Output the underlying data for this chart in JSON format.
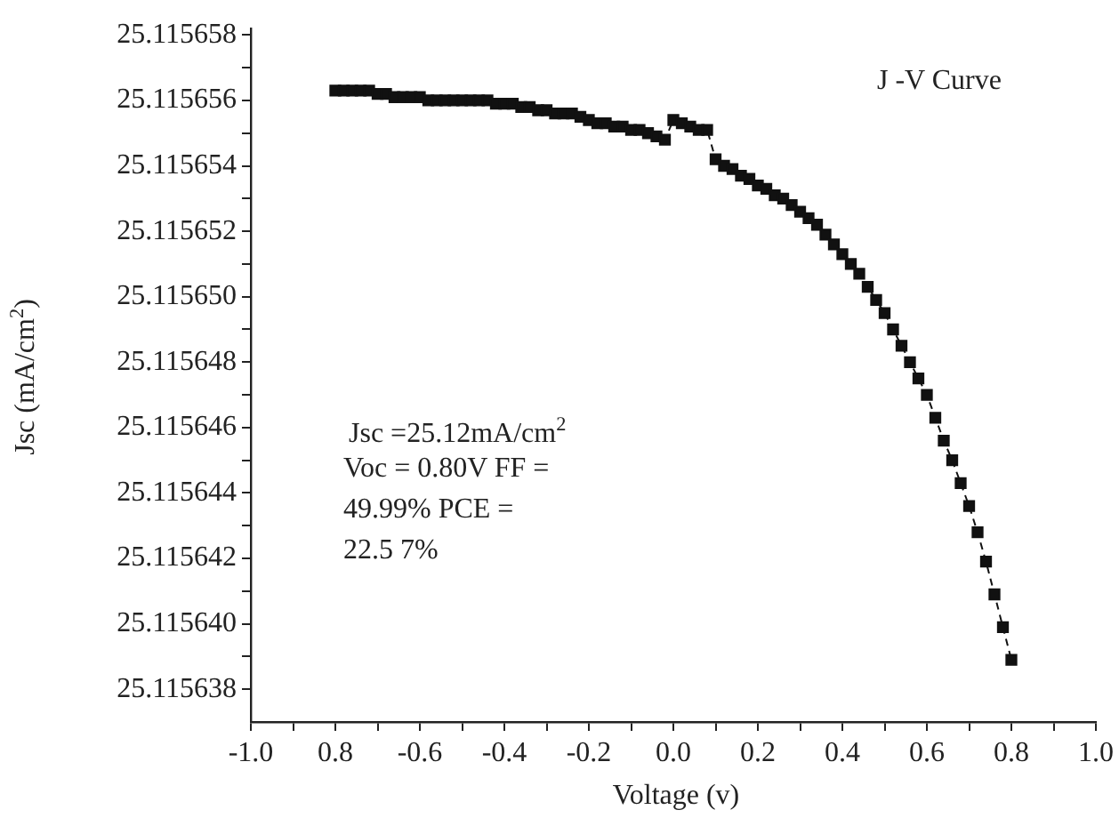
{
  "chart_data": {
    "type": "line",
    "xlabel": "Voltage (v)",
    "ylabel": "Jsc  (mA/cm$^{2}$)",
    "annotations": [
      "J -V Curve",
      "Jsc =25.12mA/cm$^{2}$",
      "Voc = 0.80V FF =",
      "49.99%  PCE  =",
      "22.5 7%"
    ],
    "x": [
      -0.8,
      -0.78,
      -0.76,
      -0.74,
      -0.72,
      -0.7,
      -0.68,
      -0.66,
      -0.64,
      -0.62,
      -0.6,
      -0.58,
      -0.56,
      -0.54,
      -0.52,
      -0.5,
      -0.48,
      -0.46,
      -0.44,
      -0.42,
      -0.4,
      -0.38,
      -0.36,
      -0.34,
      -0.32,
      -0.3,
      -0.28,
      -0.26,
      -0.24,
      -0.22,
      -0.2,
      -0.18,
      -0.16,
      -0.14,
      -0.12,
      -0.1,
      -0.08,
      -0.06,
      -0.04,
      -0.02,
      0.0,
      0.02,
      0.04,
      0.06,
      0.08,
      0.1,
      0.12,
      0.14,
      0.16,
      0.18,
      0.2,
      0.22,
      0.24,
      0.26,
      0.28,
      0.3,
      0.32,
      0.34,
      0.36,
      0.38,
      0.4,
      0.42,
      0.44,
      0.46,
      0.48,
      0.5,
      0.52,
      0.54,
      0.56,
      0.58,
      0.6,
      0.62,
      0.64,
      0.66,
      0.68,
      0.7,
      0.72,
      0.74,
      0.76,
      0.78,
      0.8
    ],
    "values": [
      25.1156563,
      25.1156563,
      25.1156563,
      25.1156563,
      25.1156563,
      25.1156562,
      25.1156562,
      25.1156561,
      25.1156561,
      25.1156561,
      25.1156561,
      25.115656,
      25.115656,
      25.115656,
      25.115656,
      25.115656,
      25.115656,
      25.115656,
      25.115656,
      25.1156559,
      25.1156559,
      25.1156559,
      25.1156558,
      25.1156558,
      25.1156557,
      25.1156557,
      25.1156556,
      25.1156556,
      25.1156556,
      25.1156555,
      25.1156554,
      25.1156553,
      25.1156553,
      25.1156552,
      25.1156552,
      25.1156551,
      25.1156551,
      25.115655,
      25.1156549,
      25.1156548,
      25.1156554,
      25.1156553,
      25.1156552,
      25.1156551,
      25.1156551,
      25.1156542,
      25.115654,
      25.1156539,
      25.1156537,
      25.1156536,
      25.1156534,
      25.1156533,
      25.1156531,
      25.115653,
      25.1156528,
      25.1156526,
      25.1156524,
      25.1156522,
      25.1156519,
      25.1156516,
      25.1156513,
      25.115651,
      25.1156507,
      25.1156503,
      25.1156499,
      25.1156495,
      25.115649,
      25.1156485,
      25.115648,
      25.1156475,
      25.115647,
      25.1156463,
      25.1156456,
      25.115645,
      25.1156443,
      25.1156436,
      25.1156428,
      25.1156419,
      25.1156409,
      25.1156399,
      25.1156389
    ],
    "color": "#111111",
    "marker": "square",
    "line_style": "dashed",
    "grid": false,
    "legend": false,
    "xlim": [
      -1.0,
      1.0
    ],
    "xticks": [
      {
        "value": -1.0,
        "label": "-1.0"
      },
      {
        "value": -0.9,
        "label": null
      },
      {
        "value": -0.8,
        "label": "0.8"
      },
      {
        "value": -0.7,
        "label": null
      },
      {
        "value": -0.6,
        "label": "-0.6"
      },
      {
        "value": -0.5,
        "label": null
      },
      {
        "value": -0.4,
        "label": "-0.4"
      },
      {
        "value": -0.3,
        "label": null
      },
      {
        "value": -0.2,
        "label": "-0.2"
      },
      {
        "value": -0.1,
        "label": null
      },
      {
        "value": 0.0,
        "label": "0.0"
      },
      {
        "value": 0.1,
        "label": null
      },
      {
        "value": 0.2,
        "label": "0.2"
      },
      {
        "value": 0.3,
        "label": null
      },
      {
        "value": 0.4,
        "label": "0.4"
      },
      {
        "value": 0.5,
        "label": null
      },
      {
        "value": 0.6,
        "label": "0.6"
      },
      {
        "value": 0.7,
        "label": null
      },
      {
        "value": 0.8,
        "label": "0.8"
      },
      {
        "value": 0.9,
        "label": null
      },
      {
        "value": 1.0,
        "label": "1.0"
      }
    ],
    "ylim": [
      25.115637,
      25.1156582
    ],
    "yticks": [
      25.115638,
      {
        "value": 25.115639,
        "label": null
      },
      {
        "value": 25.11564,
        "label": "25.115640"
      },
      {
        "value": 25.115641,
        "label": null
      },
      25.115642,
      {
        "value": 25.115643,
        "label": null
      },
      25.115644,
      {
        "value": 25.115645,
        "label": null
      },
      25.115646,
      {
        "value": 25.115647,
        "label": null
      },
      25.115648,
      {
        "value": 25.115649,
        "label": null
      },
      {
        "value": 25.11565,
        "label": "25.115650"
      },
      {
        "value": 25.115651,
        "label": null
      },
      25.115652,
      {
        "value": 25.115653,
        "label": null
      },
      25.115654,
      {
        "value": 25.115655,
        "label": null
      },
      25.115656,
      {
        "value": 25.115657,
        "label": null
      },
      25.115658
    ]
  }
}
